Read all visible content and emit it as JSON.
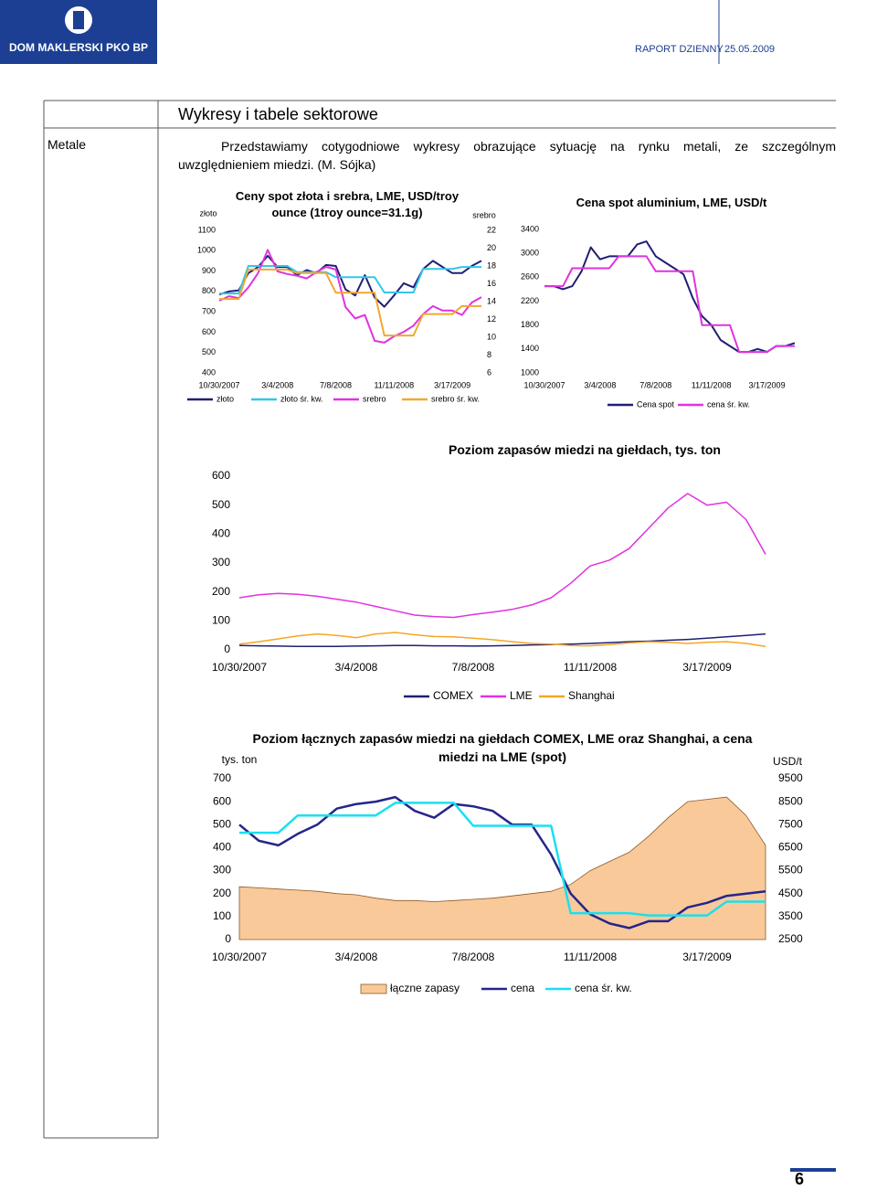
{
  "header": {
    "logo_text": "DOM MAKLERSKI PKO BP",
    "report": "RAPORT DZIENNY",
    "date": "25.05.2009"
  },
  "section": {
    "title": "Wykresy i tabele sektorowe",
    "category": "Metale",
    "intro": "Przedstawiamy cotygodniowe wykresy obrazujące sytuację na rynku metali, ze szczególnym uwzględnieniem miedzi. (M. Sójka)"
  },
  "page_number": "6",
  "chart_data": [
    {
      "type": "line",
      "title": "Ceny spot złota i srebra, LME, USD/troy ounce (1troy ounce=31.1g)",
      "y_label": "złoto",
      "y2_label": "srebro",
      "x": [
        "10/30/2007",
        "11/20/2007",
        "12/11/2007",
        "1/1/2008",
        "1/22/2008",
        "2/12/2008",
        "3/4/2008",
        "3/25/2008",
        "4/15/2008",
        "5/6/2008",
        "5/27/2008",
        "6/17/2008",
        "7/8/2008",
        "7/29/2008",
        "8/19/2008",
        "9/9/2008",
        "9/30/2008",
        "10/21/2008",
        "11/11/2008",
        "12/2/2008",
        "12/23/2008",
        "1/13/2009",
        "2/3/2009",
        "2/24/2009",
        "3/17/2009",
        "4/7/2009",
        "4/28/2009",
        "5/19/2009"
      ],
      "xticks": [
        "10/30/2007",
        "3/4/2008",
        "7/8/2008",
        "11/11/2008",
        "3/17/2009"
      ],
      "ylim": [
        400,
        1100
      ],
      "yticks": [
        400,
        500,
        600,
        700,
        800,
        900,
        1000,
        1100
      ],
      "y2lim": [
        6,
        22
      ],
      "y2ticks": [
        6,
        8,
        10,
        12,
        14,
        16,
        18,
        20,
        22
      ],
      "series": [
        {
          "name": "złoto",
          "color": "#1f1f75",
          "values": [
            785,
            800,
            805,
            890,
            920,
            975,
            920,
            920,
            880,
            905,
            890,
            930,
            925,
            810,
            780,
            880,
            770,
            725,
            780,
            840,
            820,
            910,
            950,
            920,
            890,
            890,
            925,
            950
          ]
        },
        {
          "name": "złoto śr. kw.",
          "color": "#33c6ea",
          "values": [
            790,
            790,
            790,
            925,
            925,
            925,
            925,
            925,
            895,
            895,
            895,
            895,
            870,
            870,
            870,
            870,
            870,
            795,
            795,
            795,
            795,
            910,
            910,
            910,
            910,
            920,
            920,
            920
          ]
        },
        {
          "name": "srebro",
          "color": "#e033e0",
          "axis": "y2",
          "values": [
            14.1,
            14.6,
            14.4,
            15.6,
            17.2,
            19.8,
            17.4,
            17.1,
            16.9,
            16.6,
            17.3,
            17.9,
            17.6,
            13.4,
            12.1,
            12.5,
            9.6,
            9.4,
            10.1,
            10.6,
            11.3,
            12.6,
            13.5,
            13.0,
            13.0,
            12.5,
            13.9,
            14.5
          ]
        },
        {
          "name": "srebro śr. kw.",
          "color": "#f0a830",
          "axis": "y2",
          "values": [
            14.3,
            14.3,
            14.3,
            17.6,
            17.6,
            17.6,
            17.6,
            17.6,
            17.2,
            17.2,
            17.2,
            17.2,
            15.0,
            15.0,
            15.0,
            15.0,
            15.0,
            10.2,
            10.2,
            10.2,
            10.2,
            12.6,
            12.6,
            12.6,
            12.6,
            13.5,
            13.5,
            13.5
          ]
        }
      ]
    },
    {
      "type": "line",
      "title": "Cena spot aluminium, LME, USD/t",
      "x": [
        "10/30/2007",
        "11/20/2007",
        "12/11/2007",
        "1/1/2008",
        "1/22/2008",
        "2/12/2008",
        "3/4/2008",
        "3/25/2008",
        "4/15/2008",
        "5/6/2008",
        "5/27/2008",
        "6/17/2008",
        "7/8/2008",
        "7/29/2008",
        "8/19/2008",
        "9/9/2008",
        "9/30/2008",
        "10/21/2008",
        "11/11/2008",
        "12/2/2008",
        "12/23/2008",
        "1/13/2009",
        "2/3/2009",
        "2/24/2009",
        "3/17/2009",
        "4/7/2009",
        "4/28/2009",
        "5/19/2009"
      ],
      "xticks": [
        "10/30/2007",
        "3/4/2008",
        "7/8/2008",
        "11/11/2008",
        "3/17/2009"
      ],
      "ylim": [
        1000,
        3400
      ],
      "yticks": [
        1000,
        1400,
        1800,
        2200,
        2600,
        3000,
        3400
      ],
      "series": [
        {
          "name": "Cena spot",
          "color": "#1f1f75",
          "values": [
            2450,
            2450,
            2400,
            2450,
            2700,
            3100,
            2900,
            2950,
            2950,
            2950,
            3150,
            3200,
            2950,
            2850,
            2750,
            2650,
            2250,
            1950,
            1800,
            1550,
            1450,
            1350,
            1350,
            1400,
            1350,
            1450,
            1450,
            1500
          ]
        },
        {
          "name": "cena śr. kw.",
          "color": "#e033e0",
          "values": [
            2450,
            2450,
            2450,
            2750,
            2750,
            2750,
            2750,
            2750,
            2950,
            2950,
            2950,
            2950,
            2700,
            2700,
            2700,
            2700,
            2700,
            1800,
            1800,
            1800,
            1800,
            1350,
            1350,
            1350,
            1350,
            1450,
            1450,
            1450
          ]
        }
      ]
    },
    {
      "type": "line",
      "title": "Poziom zapasów miedzi na giełdach, tys. ton",
      "x": [
        "10/30/2007",
        "11/20/2007",
        "12/11/2007",
        "1/1/2008",
        "1/22/2008",
        "2/12/2008",
        "3/4/2008",
        "3/25/2008",
        "4/15/2008",
        "5/6/2008",
        "5/27/2008",
        "6/17/2008",
        "7/8/2008",
        "7/29/2008",
        "8/19/2008",
        "9/9/2008",
        "9/30/2008",
        "10/21/2008",
        "11/11/2008",
        "12/2/2008",
        "12/23/2008",
        "1/13/2009",
        "2/3/2009",
        "2/24/2009",
        "3/17/2009",
        "4/7/2009",
        "4/28/2009",
        "5/19/2009"
      ],
      "xticks": [
        "10/30/2007",
        "3/4/2008",
        "7/8/2008",
        "11/11/2008",
        "3/17/2009"
      ],
      "ylim": [
        0,
        600
      ],
      "yticks": [
        0,
        100,
        200,
        300,
        400,
        500,
        600
      ],
      "series": [
        {
          "name": "COMEX",
          "color": "#1f1f75",
          "values": [
            15,
            14,
            13,
            12,
            12,
            12,
            13,
            14,
            15,
            15,
            14,
            14,
            13,
            14,
            15,
            17,
            18,
            20,
            22,
            25,
            28,
            30,
            33,
            36,
            40,
            45,
            50,
            55
          ]
        },
        {
          "name": "LME",
          "color": "#e033e0",
          "values": [
            180,
            190,
            195,
            192,
            185,
            175,
            165,
            150,
            135,
            120,
            115,
            112,
            122,
            130,
            140,
            155,
            180,
            230,
            290,
            310,
            350,
            420,
            490,
            540,
            500,
            510,
            450,
            330
          ]
        },
        {
          "name": "Shanghai",
          "color": "#f5a623",
          "values": [
            20,
            28,
            38,
            48,
            55,
            50,
            42,
            55,
            60,
            52,
            46,
            45,
            40,
            35,
            28,
            22,
            20,
            15,
            14,
            18,
            24,
            28,
            26,
            22,
            26,
            28,
            22,
            12
          ]
        }
      ]
    },
    {
      "type": "line",
      "title": "Poziom łącznych zapasów miedzi na giełdach COMEX, LME oraz Shanghai, a cena miedzi na LME (spot)",
      "y_label": "tys. ton",
      "y2_label": "USD/t",
      "x": [
        "10/30/2007",
        "11/20/2007",
        "12/11/2007",
        "1/1/2008",
        "1/22/2008",
        "2/12/2008",
        "3/4/2008",
        "3/25/2008",
        "4/15/2008",
        "5/6/2008",
        "5/27/2008",
        "6/17/2008",
        "7/8/2008",
        "7/29/2008",
        "8/19/2008",
        "9/9/2008",
        "9/30/2008",
        "10/21/2008",
        "11/11/2008",
        "12/2/2008",
        "12/23/2008",
        "1/13/2009",
        "2/3/2009",
        "2/24/2009",
        "3/17/2009",
        "4/7/2009",
        "4/28/2009",
        "5/19/2009"
      ],
      "xticks": [
        "10/30/2007",
        "3/4/2008",
        "7/8/2008",
        "11/11/2008",
        "3/17/2009"
      ],
      "ylim": [
        0,
        700
      ],
      "yticks": [
        0,
        100,
        200,
        300,
        400,
        500,
        600,
        700
      ],
      "y2lim": [
        2500,
        9500
      ],
      "y2ticks": [
        2500,
        3500,
        4500,
        5500,
        6500,
        7500,
        8500,
        9500
      ],
      "series": [
        {
          "name": "łączne zapasy",
          "color": "#f9c99a",
          "style": "area",
          "values": [
            230,
            225,
            220,
            215,
            210,
            200,
            195,
            180,
            170,
            170,
            165,
            170,
            175,
            180,
            190,
            200,
            210,
            240,
            300,
            340,
            380,
            450,
            530,
            600,
            610,
            620,
            540,
            410
          ]
        },
        {
          "name": "cena",
          "color": "#25258a",
          "axis": "y2",
          "values": [
            7500,
            6800,
            6600,
            7100,
            7500,
            8200,
            8400,
            8500,
            8700,
            8100,
            7800,
            8400,
            8300,
            8100,
            7500,
            7500,
            6200,
            4500,
            3600,
            3200,
            3000,
            3300,
            3300,
            3900,
            4100,
            4400,
            4500,
            4600
          ]
        },
        {
          "name": "cena śr. kw.",
          "color": "#19e0f0",
          "axis": "y2",
          "values": [
            7150,
            7150,
            7150,
            7900,
            7900,
            7900,
            7900,
            7900,
            8450,
            8450,
            8450,
            8450,
            7450,
            7450,
            7450,
            7450,
            7450,
            3650,
            3650,
            3650,
            3650,
            3550,
            3550,
            3550,
            3550,
            4150,
            4150,
            4150
          ]
        }
      ]
    }
  ]
}
